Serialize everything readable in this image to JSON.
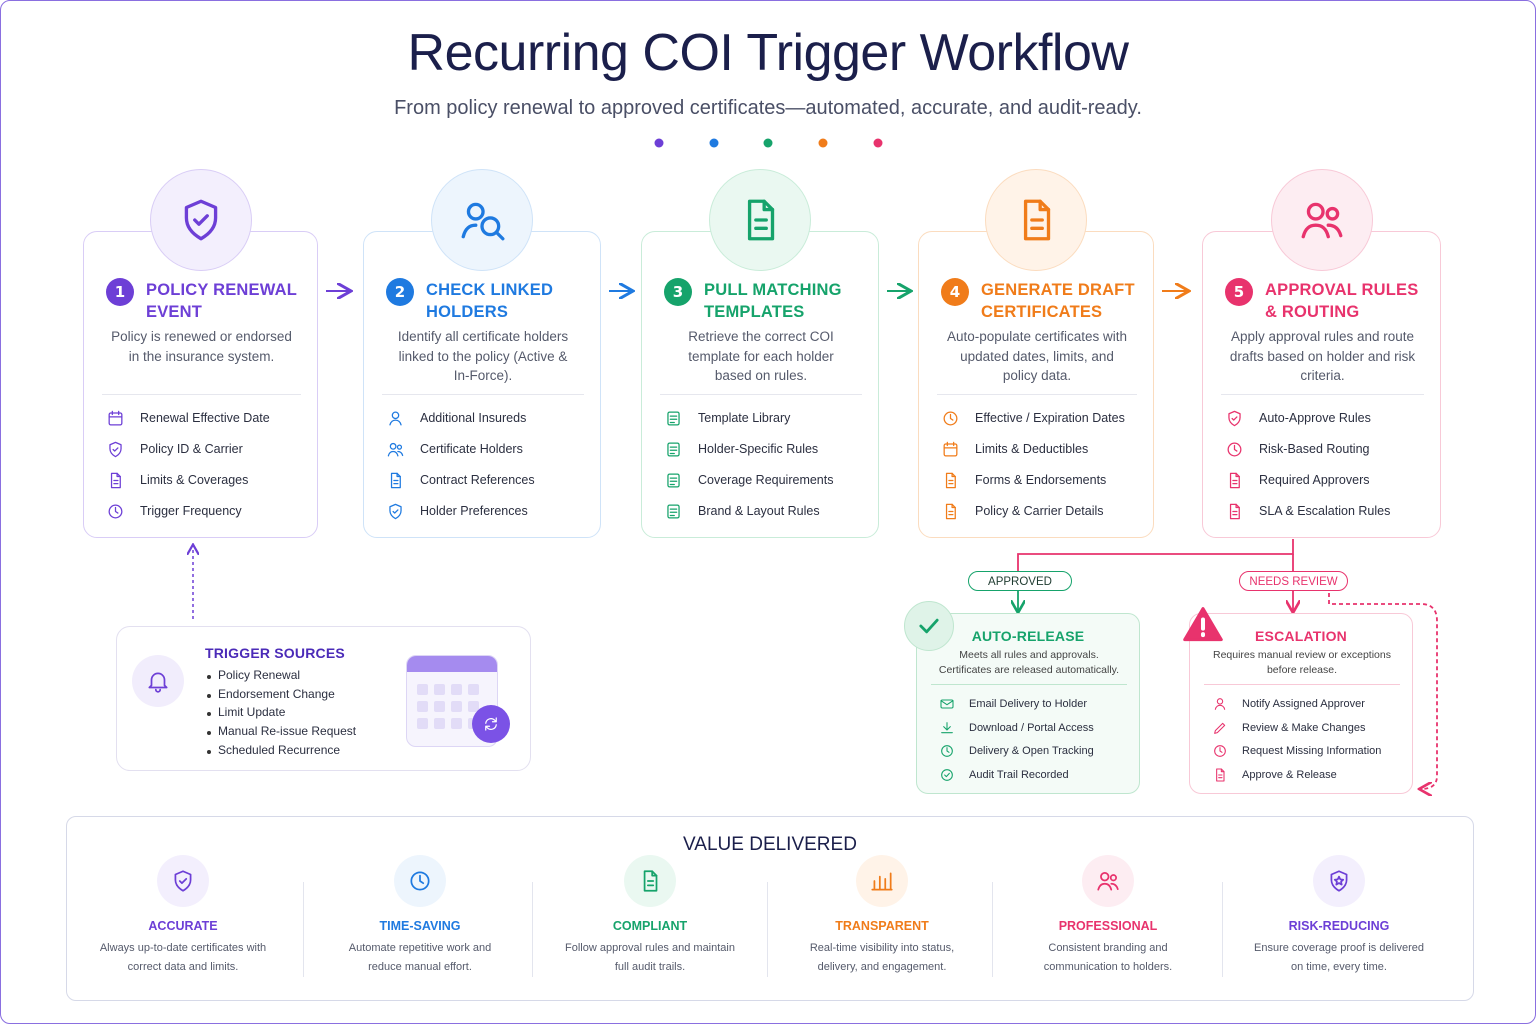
{
  "header": {
    "title": "Recurring COI Trigger Workflow",
    "subtitle": "From policy renewal to approved certificates—automated, accurate, and audit-ready."
  },
  "steps": [
    {
      "number": 1,
      "title": "POLICY RENEWAL EVENT",
      "description": "Policy is renewed or endorsed in the insurance system.",
      "items": [
        "Renewal Effective Date",
        "Policy ID & Carrier",
        "Limits & Coverages",
        "Trigger Frequency"
      ]
    },
    {
      "number": 2,
      "title": "CHECK LINKED HOLDERS",
      "description": "Identify all certificate holders linked to the policy (Active & In-Force).",
      "items": [
        "Additional Insureds",
        "Certificate Holders",
        "Contract References",
        "Holder Preferences"
      ]
    },
    {
      "number": 3,
      "title": "PULL MATCHING TEMPLATES",
      "description": "Retrieve the correct COI template for each holder based on rules.",
      "items": [
        "Template Library",
        "Holder-Specific Rules",
        "Coverage Requirements",
        "Brand & Layout Rules"
      ]
    },
    {
      "number": 4,
      "title": "GENERATE DRAFT CERTIFICATES",
      "description": "Auto-populate certificates with updated dates, limits, and policy data.",
      "items": [
        "Effective / Expiration Dates",
        "Limits & Deductibles",
        "Forms & Endorsements",
        "Policy & Carrier Details"
      ]
    },
    {
      "number": 5,
      "title": "APPROVAL RULES & ROUTING",
      "description": "Apply approval rules and route drafts based on holder and risk criteria.",
      "items": [
        "Auto-Approve Rules",
        "Risk-Based Routing",
        "Required Approvers",
        "SLA & Escalation Rules"
      ]
    }
  ],
  "trigger_sources": {
    "title": "TRIGGER SOURCES",
    "items": [
      "Policy Renewal",
      "Endorsement Change",
      "Limit Update",
      "Manual Re-issue Request",
      "Scheduled Recurrence"
    ]
  },
  "branches": {
    "approved": {
      "label": "APPROVED",
      "title": "AUTO-RELEASE",
      "description": "Meets all rules and approvals. Certificates are released automatically.",
      "items": [
        "Email Delivery to Holder",
        "Download / Portal Access",
        "Delivery & Open Tracking",
        "Audit Trail Recorded"
      ]
    },
    "needs_review": {
      "label": "NEEDS REVIEW",
      "title": "ESCALATION",
      "description": "Requires manual review or exceptions before release.",
      "items": [
        "Notify Assigned Approver",
        "Review & Make Changes",
        "Request Missing Information",
        "Approve & Release"
      ]
    }
  },
  "value_delivered": {
    "title": "VALUE DELIVERED",
    "items": [
      {
        "title": "ACCURATE",
        "description": "Always up-to-date certificates with correct data and limits."
      },
      {
        "title": "TIME-SAVING",
        "description": "Automate repetitive work and reduce manual effort."
      },
      {
        "title": "COMPLIANT",
        "description": "Follow approval rules and maintain full audit trails."
      },
      {
        "title": "TRANSPARENT",
        "description": "Real-time visibility into status, delivery, and engagement."
      },
      {
        "title": "PROFESSIONAL",
        "description": "Consistent branding and communication to holders."
      },
      {
        "title": "RISK-REDUCING",
        "description": "Ensure coverage proof is delivered on time, every time."
      }
    ]
  }
}
